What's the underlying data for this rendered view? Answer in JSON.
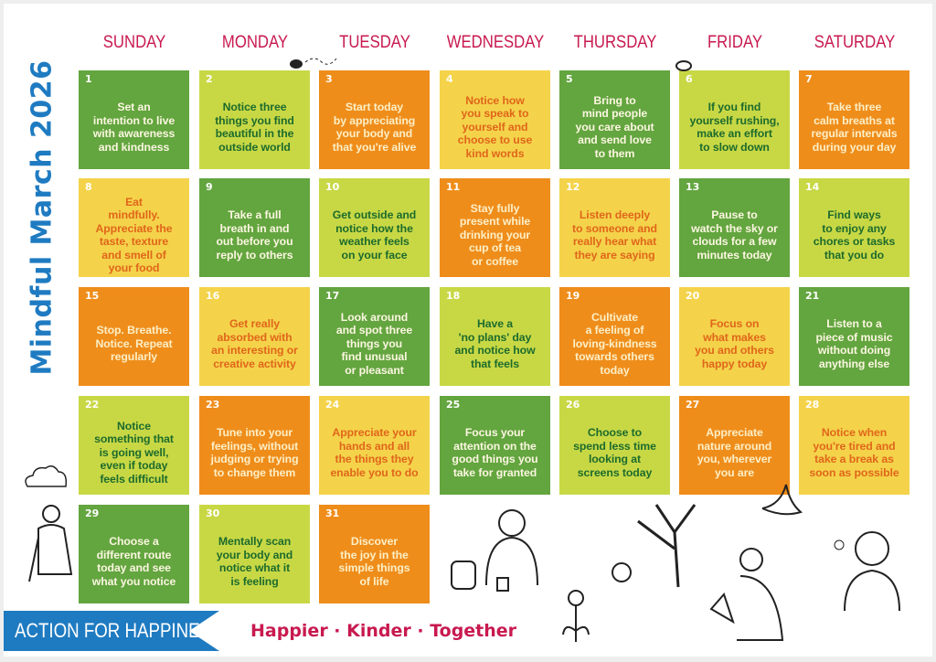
{
  "title": "Mindful March 2026",
  "weekdays": [
    "SUNDAY",
    "MONDAY",
    "TUESDAY",
    "WEDNESDAY",
    "THURSDAY",
    "FRIDAY",
    "SATURDAY"
  ],
  "colors": {
    "dark_green": "#63a53f",
    "lime": "#c8d845",
    "orange": "#ef8d1b",
    "yellow": "#f4d34a",
    "title_blue": "#1f7bc1",
    "crimson": "#c8194f"
  },
  "days": [
    {
      "n": "1",
      "tone": "G",
      "text": "Set an\nintention to live\nwith awareness\nand kindness"
    },
    {
      "n": "2",
      "tone": "L",
      "text": "Notice three\nthings you find\nbeautiful in the\noutside world"
    },
    {
      "n": "3",
      "tone": "O",
      "text": "Start today\nby appreciating\nyour body and\nthat you're alive"
    },
    {
      "n": "4",
      "tone": "Y",
      "text": "Notice how\nyou speak to\nyourself and\nchoose to use\nkind words"
    },
    {
      "n": "5",
      "tone": "G",
      "text": "Bring to\nmind people\nyou care about\nand send love\nto them"
    },
    {
      "n": "6",
      "tone": "L",
      "text": "If you find\nyourself rushing,\nmake an effort\nto slow down"
    },
    {
      "n": "7",
      "tone": "O",
      "text": "Take three\ncalm breaths at\nregular intervals\nduring your day"
    },
    {
      "n": "8",
      "tone": "Y",
      "text": "Eat\nmindfully.\nAppreciate the\ntaste, texture\nand smell of\nyour food"
    },
    {
      "n": "9",
      "tone": "G",
      "text": "Take a full\nbreath in and\nout before you\nreply to others"
    },
    {
      "n": "10",
      "tone": "L",
      "text": "Get outside and\nnotice how the\nweather feels\non your face"
    },
    {
      "n": "11",
      "tone": "O",
      "text": "Stay fully\npresent while\ndrinking your\ncup of tea\nor coffee"
    },
    {
      "n": "12",
      "tone": "Y",
      "text": "Listen deeply\nto someone and\nreally hear what\nthey are saying"
    },
    {
      "n": "13",
      "tone": "G",
      "text": "Pause to\nwatch the sky or\nclouds for a few\nminutes today"
    },
    {
      "n": "14",
      "tone": "L",
      "text": "Find ways\nto enjoy any\nchores or tasks\nthat you do"
    },
    {
      "n": "15",
      "tone": "O",
      "text": "Stop. Breathe.\nNotice. Repeat\nregularly"
    },
    {
      "n": "16",
      "tone": "Y",
      "text": "Get really\nabsorbed with\nan interesting or\ncreative activity"
    },
    {
      "n": "17",
      "tone": "G",
      "text": "Look around\nand spot three\nthings you\nfind unusual\nor pleasant"
    },
    {
      "n": "18",
      "tone": "L",
      "text": "Have a\n'no plans' day\nand notice how\nthat feels"
    },
    {
      "n": "19",
      "tone": "O",
      "text": "Cultivate\na feeling of\nloving-kindness\ntowards others\ntoday"
    },
    {
      "n": "20",
      "tone": "Y",
      "text": "Focus on\nwhat makes\nyou and others\nhappy today"
    },
    {
      "n": "21",
      "tone": "G",
      "text": "Listen to a\npiece of music\nwithout doing\nanything else"
    },
    {
      "n": "22",
      "tone": "L",
      "text": "Notice\nsomething that\nis going well,\neven if today\nfeels difficult"
    },
    {
      "n": "23",
      "tone": "O",
      "text": "Tune into your\nfeelings, without\njudging or trying\nto change them"
    },
    {
      "n": "24",
      "tone": "Y",
      "text": "Appreciate your\nhands and all\nthe things they\nenable you to do"
    },
    {
      "n": "25",
      "tone": "G",
      "text": "Focus your\nattention on the\ngood things you\ntake for granted"
    },
    {
      "n": "26",
      "tone": "L",
      "text": "Choose to\nspend less time\nlooking at\nscreens today"
    },
    {
      "n": "27",
      "tone": "O",
      "text": "Appreciate\nnature around\nyou, wherever\nyou are"
    },
    {
      "n": "28",
      "tone": "Y",
      "text": "Notice when\nyou're tired and\ntake a break as\nsoon as possible"
    },
    {
      "n": "29",
      "tone": "G",
      "text": "Choose a\ndifferent route\ntoday and see\nwhat you notice"
    },
    {
      "n": "30",
      "tone": "L",
      "text": "Mentally scan\nyour body and\nnotice what it\nis feeling"
    },
    {
      "n": "31",
      "tone": "O",
      "text": "Discover\nthe joy in the\nsimple things\nof life"
    }
  ],
  "footer": {
    "brand": "ACTION FOR HAPPINESS",
    "tagline": "Happier · Kinder · Together"
  }
}
